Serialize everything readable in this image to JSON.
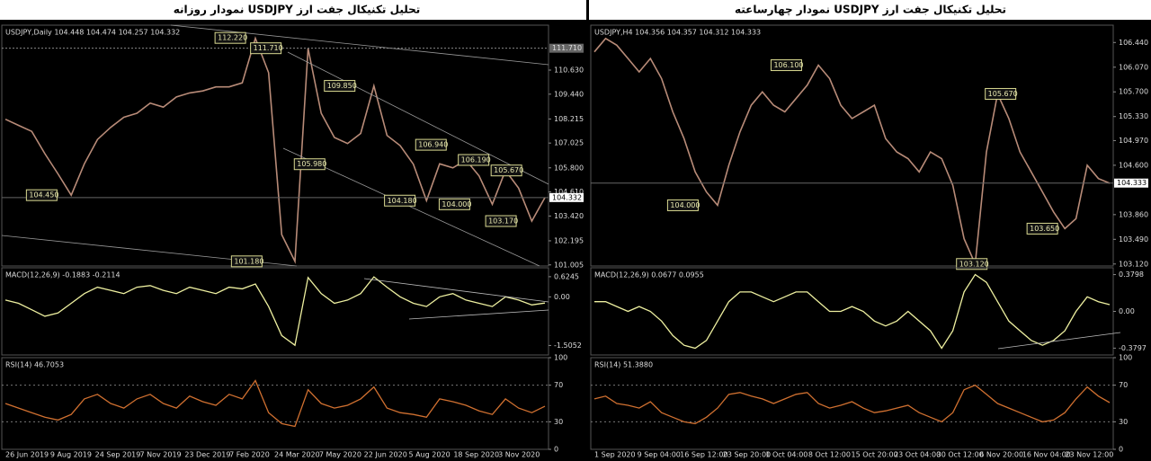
{
  "left": {
    "title": "تحلیل تکنیکال جفت ارز USDJPY نمودار روزانه",
    "main": {
      "header": "USDJPY,Daily 104.448 104.474 104.257 104.332",
      "ylim": [
        100.95,
        112.85
      ],
      "yticks": [
        {
          "value": 110.63,
          "label": "110.630"
        },
        {
          "value": 109.44,
          "label": "109.440"
        },
        {
          "value": 108.215,
          "label": "108.215"
        },
        {
          "value": 107.025,
          "label": "107.025"
        },
        {
          "value": 105.8,
          "label": "105.800"
        },
        {
          "value": 104.61,
          "label": "104.610"
        },
        {
          "value": 103.42,
          "label": "103.420"
        },
        {
          "value": 102.195,
          "label": "102.195"
        },
        {
          "value": 101.005,
          "label": "101.005"
        }
      ],
      "hline": {
        "value": 111.71,
        "label": "111.710"
      },
      "current": {
        "value": 104.332,
        "label": "104.332"
      },
      "price": [
        108.2,
        107.9,
        107.6,
        106.5,
        105.5,
        104.45,
        106.0,
        107.2,
        107.8,
        108.3,
        108.5,
        109.0,
        108.8,
        109.3,
        109.5,
        109.6,
        109.8,
        109.8,
        110.0,
        112.2,
        110.5,
        102.5,
        101.18,
        111.7,
        108.5,
        107.3,
        107.0,
        107.5,
        109.85,
        107.4,
        106.9,
        105.98,
        104.18,
        106.0,
        105.8,
        106.19,
        105.4,
        104.0,
        105.67,
        104.8,
        103.17,
        104.33
      ],
      "annotations": [
        {
          "value": 112.22,
          "label": "112.220"
        },
        {
          "value": 111.71,
          "label": "111.710"
        },
        {
          "value": 109.85,
          "label": "109.850"
        },
        {
          "value": 105.98,
          "label": "105.980"
        },
        {
          "value": 106.94,
          "label": "106.940"
        },
        {
          "value": 106.19,
          "label": "106.190"
        },
        {
          "value": 105.67,
          "label": "105.670"
        },
        {
          "value": 104.45,
          "label": "104.450"
        },
        {
          "value": 104.18,
          "label": "104.180"
        },
        {
          "value": 104.0,
          "label": "104.000"
        },
        {
          "value": 103.17,
          "label": "103.170"
        },
        {
          "value": 101.18,
          "label": "101.180"
        }
      ]
    },
    "macd": {
      "header": "MACD(12,26,9) -0.1883 -0.2114",
      "ylim": [
        -1.8,
        0.9
      ],
      "yticks": [
        0.6245,
        {
          "value": 0,
          "label": "0.00"
        },
        -1.5052
      ],
      "values": [
        -0.1,
        -0.2,
        -0.4,
        -0.6,
        -0.5,
        -0.2,
        0.1,
        0.3,
        0.2,
        0.1,
        0.3,
        0.35,
        0.2,
        0.1,
        0.3,
        0.2,
        0.1,
        0.3,
        0.25,
        0.4,
        -0.3,
        -1.2,
        -1.5,
        0.6,
        0.1,
        -0.2,
        -0.1,
        0.1,
        0.62,
        0.3,
        0.0,
        -0.2,
        -0.3,
        0.0,
        0.1,
        -0.1,
        -0.2,
        -0.3,
        0.0,
        -0.1,
        -0.25,
        -0.19
      ]
    },
    "rsi": {
      "header": "RSI(14) 46.7053",
      "ylim": [
        0,
        100
      ],
      "yticks": [
        100,
        70,
        30,
        0
      ],
      "values": [
        50,
        45,
        40,
        35,
        32,
        38,
        55,
        60,
        50,
        45,
        55,
        60,
        50,
        45,
        58,
        52,
        48,
        60,
        55,
        75,
        40,
        28,
        25,
        65,
        50,
        45,
        48,
        55,
        68,
        45,
        40,
        38,
        35,
        55,
        52,
        48,
        42,
        38,
        55,
        45,
        40,
        47
      ]
    },
    "xlabels": [
      "26 Jun 2019",
      "9 Aug 2019",
      "24 Sep 2019",
      "7 Nov 2019",
      "23 Dec 2019",
      "7 Feb 2020",
      "24 Mar 2020",
      "7 May 2020",
      "22 Jun 2020",
      "5 Aug 2020",
      "18 Sep 2020",
      "3 Nov 2020"
    ]
  },
  "right": {
    "title": "تحلیل تکنیکال جفت ارز USDJPY نمودار چهارساعته",
    "main": {
      "header": "USDJPY,H4 104.356 104.357 104.312 104.333",
      "ylim": [
        103.09,
        106.7
      ],
      "yticks": [
        {
          "value": 106.44,
          "label": "106.440"
        },
        {
          "value": 106.07,
          "label": "106.070"
        },
        {
          "value": 105.7,
          "label": "105.700"
        },
        {
          "value": 105.33,
          "label": "105.330"
        },
        {
          "value": 104.97,
          "label": "104.970"
        },
        {
          "value": 104.6,
          "label": "104.600"
        },
        {
          "value": 103.86,
          "label": "103.860"
        },
        {
          "value": 103.49,
          "label": "103.490"
        },
        {
          "value": 103.12,
          "label": "103.120"
        }
      ],
      "current": {
        "value": 104.333,
        "label": "104.333"
      },
      "price": [
        106.3,
        106.5,
        106.4,
        106.2,
        106.0,
        106.2,
        105.9,
        105.4,
        105.0,
        104.5,
        104.2,
        104.0,
        104.6,
        105.1,
        105.5,
        105.7,
        105.5,
        105.4,
        105.6,
        105.8,
        106.1,
        105.9,
        105.5,
        105.3,
        105.4,
        105.5,
        105.0,
        104.8,
        104.7,
        104.5,
        104.8,
        104.7,
        104.3,
        103.5,
        103.12,
        104.8,
        105.67,
        105.3,
        104.8,
        104.5,
        104.2,
        103.9,
        103.65,
        103.8,
        104.6,
        104.4,
        104.33
      ],
      "annotations": [
        {
          "value": 106.1,
          "label": "106.100"
        },
        {
          "value": 105.67,
          "label": "105.670"
        },
        {
          "value": 104.0,
          "label": "104.000"
        },
        {
          "value": 103.65,
          "label": "103.650"
        },
        {
          "value": 103.12,
          "label": "103.120"
        }
      ]
    },
    "macd": {
      "header": "MACD(12,26,9) 0.0677 0.0955",
      "ylim": [
        -0.45,
        0.45
      ],
      "yticks": [
        0.3798,
        {
          "value": 0,
          "label": "0.00"
        },
        -0.3797
      ],
      "values": [
        0.1,
        0.1,
        0.05,
        0.0,
        0.05,
        0.0,
        -0.1,
        -0.25,
        -0.35,
        -0.38,
        -0.3,
        -0.1,
        0.1,
        0.2,
        0.2,
        0.15,
        0.1,
        0.15,
        0.2,
        0.2,
        0.1,
        0.0,
        0.0,
        0.05,
        0.0,
        -0.1,
        -0.15,
        -0.1,
        0.0,
        -0.1,
        -0.2,
        -0.38,
        -0.2,
        0.2,
        0.38,
        0.3,
        0.1,
        -0.1,
        -0.2,
        -0.3,
        -0.35,
        -0.3,
        -0.2,
        0.0,
        0.15,
        0.1,
        0.07
      ]
    },
    "rsi": {
      "header": "RSI(14) 51.3880",
      "ylim": [
        0,
        100
      ],
      "yticks": [
        100,
        70,
        30,
        0
      ],
      "values": [
        55,
        58,
        50,
        48,
        45,
        52,
        40,
        35,
        30,
        28,
        35,
        45,
        60,
        62,
        58,
        55,
        50,
        55,
        60,
        62,
        50,
        45,
        48,
        52,
        45,
        40,
        42,
        45,
        48,
        40,
        35,
        30,
        40,
        65,
        70,
        60,
        50,
        45,
        40,
        35,
        30,
        32,
        40,
        55,
        68,
        58,
        51
      ]
    },
    "xlabels": [
      "1 Sep 2020",
      "9 Sep 04:00",
      "16 Sep 12:00",
      "23 Sep 20:00",
      "1 Oct 04:00",
      "8 Oct 12:00",
      "15 Oct 20:00",
      "23 Oct 04:00",
      "30 Oct 12:00",
      "6 Nov 20:00",
      "16 Nov 04:00",
      "23 Nov 12:00"
    ]
  }
}
